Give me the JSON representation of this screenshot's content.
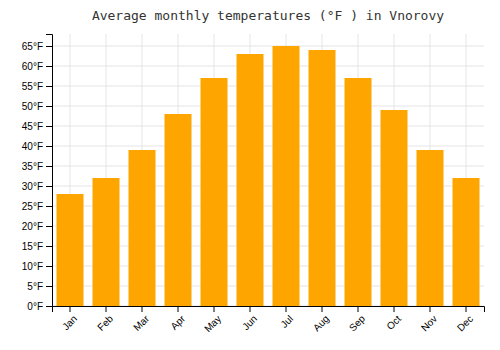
{
  "chart_data": {
    "type": "bar",
    "title": "Average monthly temperatures (°F ) in Vnorovy",
    "categories": [
      "Jan",
      "Feb",
      "Mar",
      "Apr",
      "May",
      "Jun",
      "Jul",
      "Aug",
      "Sep",
      "Oct",
      "Nov",
      "Dec"
    ],
    "values": [
      28,
      32,
      39,
      48,
      57,
      63,
      65,
      64,
      57,
      49,
      39,
      32
    ],
    "color": "#FFA500",
    "ylim": [
      0,
      68
    ],
    "yticks": [
      {
        "value": 0,
        "label": "0°F"
      },
      {
        "value": 5,
        "label": "5°F"
      },
      {
        "value": 10,
        "label": "10°F"
      },
      {
        "value": 15,
        "label": "15°F"
      },
      {
        "value": 20,
        "label": "20°F"
      },
      {
        "value": 25,
        "label": "25°F"
      },
      {
        "value": 30,
        "label": "30°F"
      },
      {
        "value": 35,
        "label": "35°F"
      },
      {
        "value": 40,
        "label": "40°F"
      },
      {
        "value": 45,
        "label": "45°F"
      },
      {
        "value": 50,
        "label": "50°F"
      },
      {
        "value": 55,
        "label": "55°F"
      },
      {
        "value": 60,
        "label": "60°F"
      },
      {
        "value": 65,
        "label": "65°F"
      }
    ],
    "grid": true
  }
}
